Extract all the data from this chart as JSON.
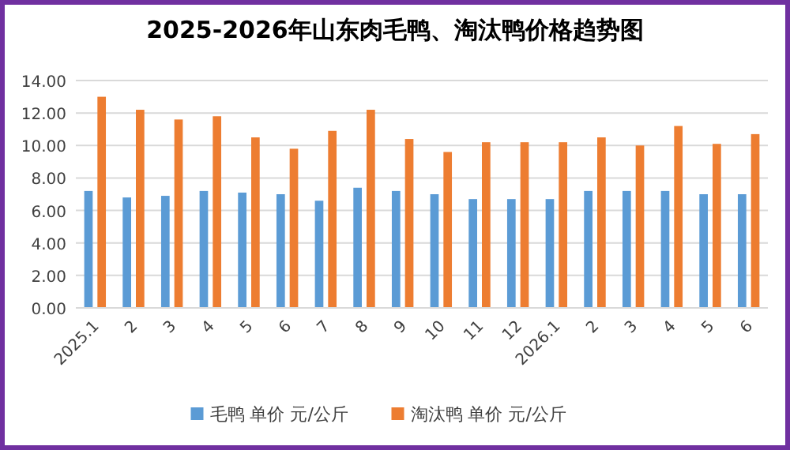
{
  "chart_data": {
    "type": "bar",
    "title": "2025-2026年山东肉毛鸭、淘汰鸭价格趋势图",
    "categories": [
      "2025.1",
      "2",
      "3",
      "4",
      "5",
      "6",
      "7",
      "8",
      "9",
      "10",
      "11",
      "12",
      "2026.1",
      "2",
      "3",
      "4",
      "5",
      "6"
    ],
    "series": [
      {
        "name": "毛鸭 单价 元/公斤",
        "color": "#5b9bd5",
        "values": [
          7.2,
          6.8,
          6.9,
          7.2,
          7.1,
          7.0,
          6.6,
          7.4,
          7.2,
          7.0,
          6.7,
          6.7,
          6.7,
          7.2,
          7.2,
          7.2,
          7.0,
          7.0
        ]
      },
      {
        "name": "淘汰鸭 单价 元/公斤",
        "color": "#ed7d31",
        "values": [
          13.0,
          12.2,
          11.6,
          11.8,
          10.5,
          9.8,
          10.9,
          12.2,
          10.4,
          9.6,
          10.2,
          10.2,
          10.2,
          10.5,
          10.0,
          11.2,
          10.1,
          10.7
        ]
      }
    ],
    "ylim": [
      0,
      14
    ],
    "yticks": [
      {
        "value": 0,
        "label": "0.00"
      },
      {
        "value": 2,
        "label": "2.00"
      },
      {
        "value": 4,
        "label": "4.00"
      },
      {
        "value": 6,
        "label": "6.00"
      },
      {
        "value": 8,
        "label": "8.00"
      },
      {
        "value": 10,
        "label": "10.00"
      },
      {
        "value": 12,
        "label": "12.00"
      },
      {
        "value": 14,
        "label": "14.00"
      }
    ],
    "grid": "y",
    "legend": "bottom"
  }
}
